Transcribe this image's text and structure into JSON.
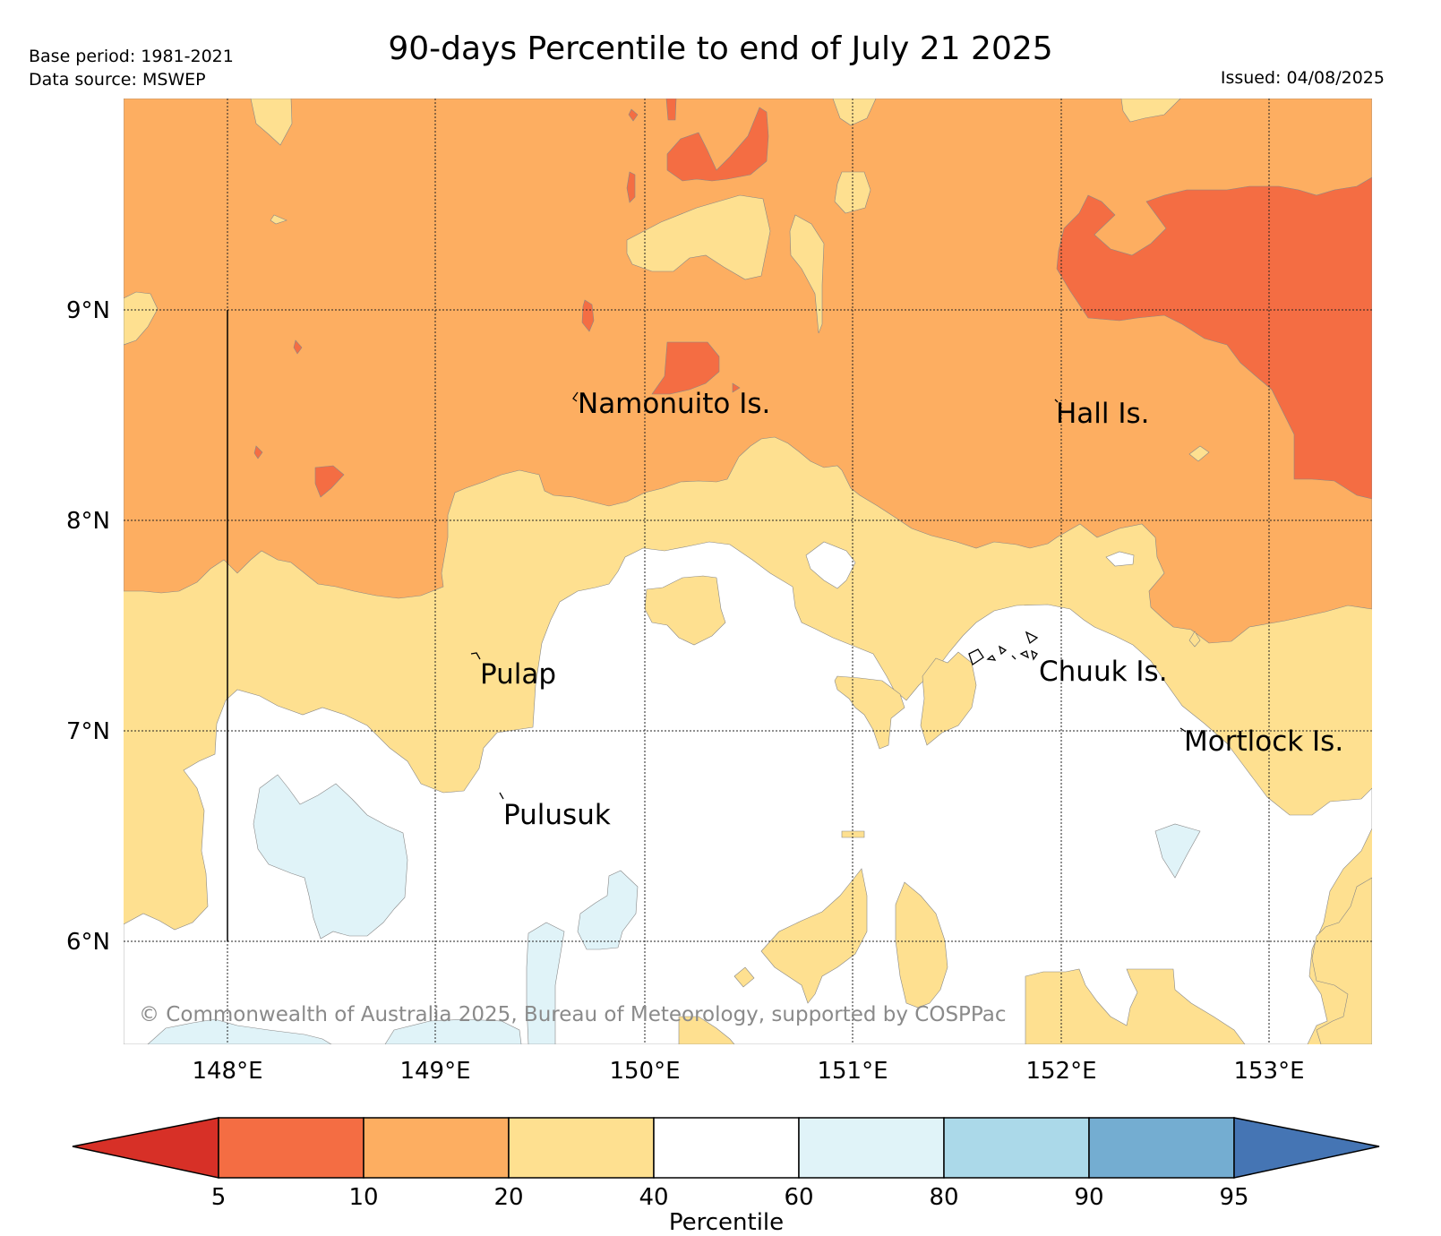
{
  "header": {
    "title": "90-days Percentile to end of July 21 2025",
    "base_period": "Base period: 1981-2021",
    "data_source": "Data source: MSWEP",
    "issued": "Issued: 04/08/2025"
  },
  "map": {
    "copyright": "© Commonwealth of Australia 2025, Bureau of Meteorology, supported by COSPPac",
    "lon_ticks": [
      "148°E",
      "149°E",
      "150°E",
      "151°E",
      "152°E",
      "153°E"
    ],
    "lat_ticks": [
      "9°N",
      "8°N",
      "7°N",
      "6°N"
    ],
    "labels": [
      {
        "id": "namonuito",
        "text": "Namonuito Is."
      },
      {
        "id": "hall",
        "text": "Hall Is."
      },
      {
        "id": "pulap",
        "text": "Pulap"
      },
      {
        "id": "chuuk",
        "text": "Chuuk Is."
      },
      {
        "id": "mortlock",
        "text": "Mortlock Is."
      },
      {
        "id": "pulusuk",
        "text": "Pulusuk"
      }
    ]
  },
  "colorbar": {
    "label": "Percentile",
    "ticks": [
      "5",
      "10",
      "20",
      "40",
      "60",
      "80",
      "90",
      "95"
    ],
    "colors": {
      "lt5": "#d73027",
      "p5_10": "#f46d43",
      "p10_20": "#fdae61",
      "p20_40": "#fee090",
      "p40_60": "#ffffff",
      "p60_80": "#e0f3f8",
      "p80_90": "#abd9e9",
      "p90_95": "#74add1",
      "gt95": "#4575b4"
    }
  }
}
